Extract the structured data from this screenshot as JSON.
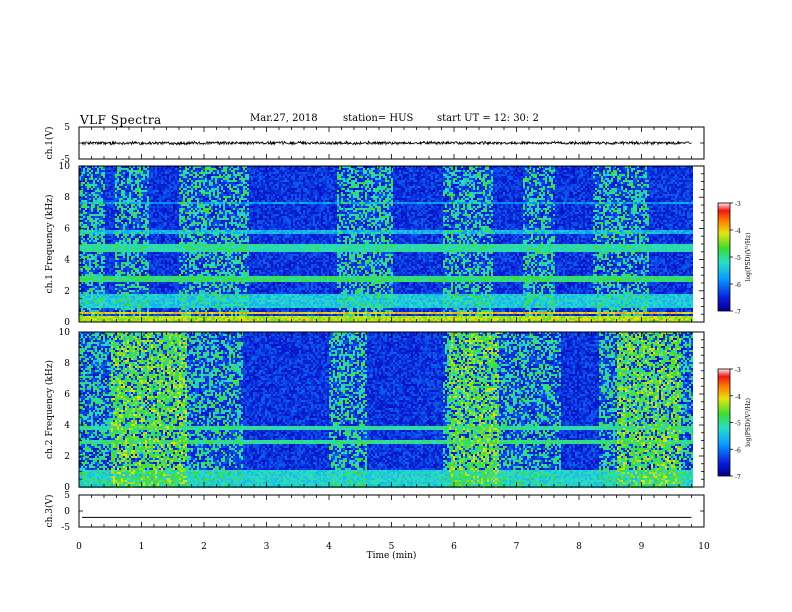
{
  "header": {
    "title": "VLF Spectra",
    "date": "Mar.27, 2018",
    "station": "station= HUS",
    "start": "start  UT =   12: 30: 2"
  },
  "chart_data": [
    {
      "type": "line",
      "panel": "ch1-waveform",
      "ylabel": "ch.1(V)",
      "ylim": [
        -5,
        5
      ],
      "yticks": [
        "5",
        "-5"
      ],
      "xlim": [
        0,
        10
      ],
      "series": [
        {
          "color": "#000000",
          "approx_level": 0,
          "approx_amplitude": 0.4,
          "x_end": 9.8
        }
      ]
    },
    {
      "type": "heatmap",
      "panel": "ch1-spectrogram",
      "ylabel": "ch.1 Frequency (kHz)",
      "ylim": [
        0,
        10
      ],
      "yticks": [
        "0",
        "2",
        "4",
        "6",
        "8",
        "10"
      ],
      "xlim": [
        0,
        10
      ],
      "x_data_end": 9.8,
      "colorbar": {
        "label": "log(PSD)(V²/Hz)",
        "range": [
          -7,
          -3
        ],
        "ticks": [
          "-3",
          "-4",
          "-5",
          "-6",
          "-7"
        ]
      },
      "background_level": -6.4,
      "bands": [
        {
          "freq": [
            0.0,
            0.5
          ],
          "level": -4.3
        },
        {
          "freq": [
            0.55,
            0.65
          ],
          "level": -4.0
        },
        {
          "freq": [
            0.95,
            1.9
          ],
          "level": -5.4
        },
        {
          "freq": [
            2.6,
            3.0
          ],
          "level": -4.9
        },
        {
          "freq": [
            4.6,
            5.0
          ],
          "level": -5.1
        },
        {
          "freq": [
            5.7,
            5.9
          ],
          "level": -5.6
        },
        {
          "freq": [
            7.6,
            7.8
          ],
          "level": -5.8
        }
      ],
      "active_intervals": [
        [
          0.0,
          0.4
        ],
        [
          0.55,
          1.1
        ],
        [
          1.6,
          2.7
        ],
        [
          4.1,
          5.0
        ],
        [
          5.8,
          6.6
        ],
        [
          7.1,
          7.6
        ],
        [
          8.2,
          9.1
        ]
      ]
    },
    {
      "type": "heatmap",
      "panel": "ch2-spectrogram",
      "ylabel": "ch.2 Frequency (kHz)",
      "ylim": [
        0,
        10
      ],
      "yticks": [
        "0",
        "2",
        "4",
        "6",
        "8",
        "10"
      ],
      "xlim": [
        0,
        10
      ],
      "x_data_end": 9.8,
      "colorbar": {
        "label": "log(PSD)(V²/Hz)",
        "range": [
          -7,
          -3
        ],
        "ticks": [
          "-3",
          "-4",
          "-5",
          "-6",
          "-7"
        ]
      },
      "background_level": -6.4,
      "bands": [
        {
          "freq": [
            0.0,
            1.2
          ],
          "level": -5.3
        },
        {
          "freq": [
            2.9,
            3.1
          ],
          "level": -5.0
        },
        {
          "freq": [
            3.8,
            4.0
          ],
          "level": -5.1
        }
      ],
      "active_intervals": [
        [
          0.0,
          2.6
        ],
        [
          4.0,
          4.6
        ],
        [
          5.8,
          7.7
        ],
        [
          8.3,
          9.8
        ]
      ],
      "strong_intervals": [
        [
          0.5,
          1.7
        ],
        [
          5.9,
          6.7
        ],
        [
          8.6,
          9.6
        ]
      ]
    },
    {
      "type": "line",
      "panel": "ch3-waveform",
      "ylabel": "ch.3(V)",
      "ylim": [
        -5,
        5
      ],
      "yticks": [
        "5",
        "0",
        "-5"
      ],
      "xlim": [
        0,
        10
      ],
      "xlabel": "Time (min)",
      "xticks": [
        "0",
        "1",
        "2",
        "3",
        "4",
        "5",
        "6",
        "7",
        "8",
        "9",
        "10"
      ],
      "series": [
        {
          "color": "#000000",
          "approx_level": -2.0,
          "approx_amplitude": 0.0,
          "x_end": 9.8
        }
      ]
    }
  ]
}
